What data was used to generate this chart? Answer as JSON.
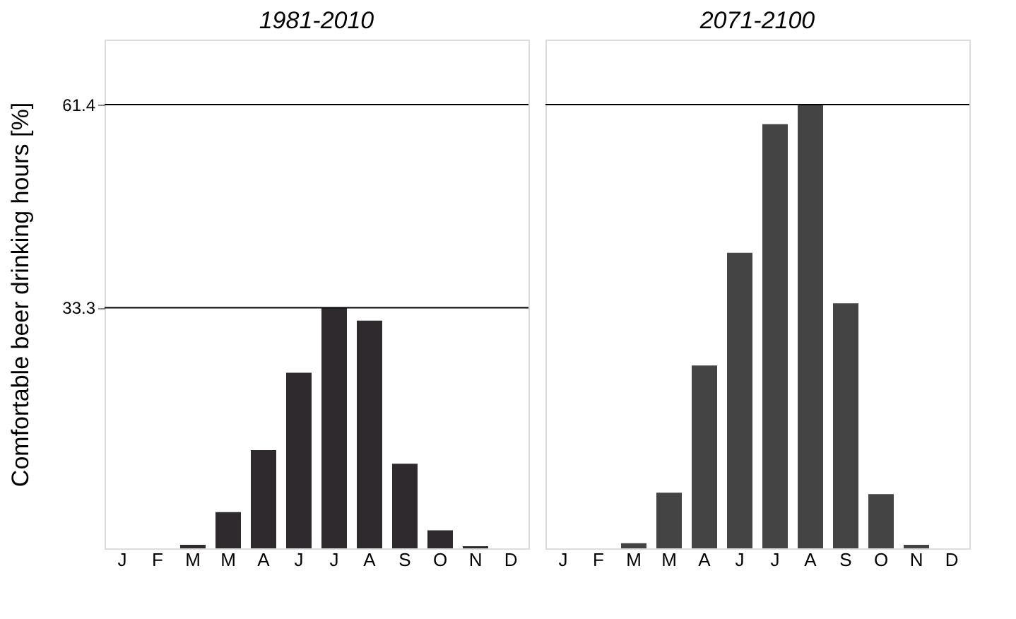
{
  "chart_data": [
    {
      "type": "bar",
      "title": "1981-2010",
      "ylabel": "Comfortable beer drinking hours [%]",
      "categories": [
        "J",
        "F",
        "M",
        "M",
        "A",
        "J",
        "J",
        "A",
        "S",
        "O",
        "N",
        "D"
      ],
      "values": [
        0,
        0,
        0.5,
        5,
        13.6,
        24.3,
        33.3,
        31.5,
        11.7,
        2.5,
        0.3,
        0
      ],
      "color": "#2e2a2e",
      "ylim": [
        0,
        70.4
      ],
      "yticks": [
        33.3,
        61.4
      ],
      "grid": false,
      "ref_lines": [
        {
          "axis": "y",
          "value": 33.3,
          "label": null,
          "color": "#000000"
        },
        {
          "axis": "y",
          "value": 61.4,
          "label": null,
          "color": "#000000"
        }
      ]
    },
    {
      "type": "bar",
      "title": "2071-2100",
      "categories": [
        "J",
        "F",
        "M",
        "M",
        "A",
        "J",
        "J",
        "A",
        "S",
        "O",
        "N",
        "D"
      ],
      "values": [
        0,
        0,
        0.7,
        7.7,
        25.3,
        40.9,
        58.7,
        61.4,
        33.9,
        7.5,
        0.5,
        0
      ],
      "color": "#444444",
      "ylim": [
        0,
        70.4
      ],
      "grid": false,
      "tick_labels": "x",
      "ref_lines": [
        {
          "axis": "y",
          "value": 61.4,
          "label": null,
          "color": "#000000"
        }
      ]
    }
  ]
}
